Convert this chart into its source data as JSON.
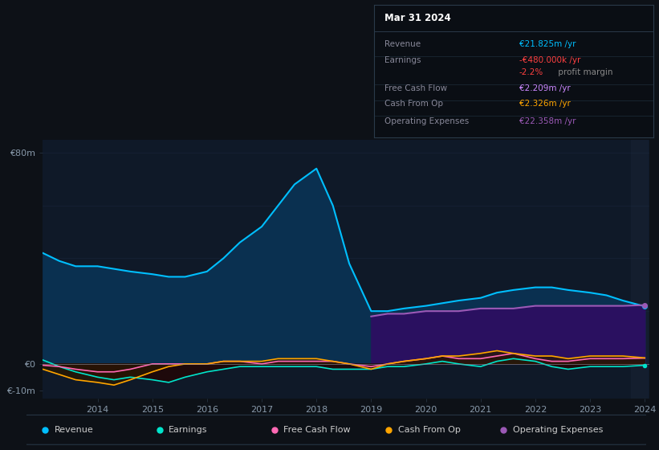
{
  "background_color": "#0d1117",
  "plot_bg_color": "#0f1928",
  "grid_color": "#1e2d45",
  "years": [
    2013.0,
    2013.3,
    2013.6,
    2014.0,
    2014.3,
    2014.6,
    2015.0,
    2015.3,
    2015.6,
    2016.0,
    2016.3,
    2016.6,
    2017.0,
    2017.3,
    2017.6,
    2018.0,
    2018.3,
    2018.6,
    2019.0,
    2019.3,
    2019.6,
    2020.0,
    2020.3,
    2020.6,
    2021.0,
    2021.3,
    2021.6,
    2022.0,
    2022.3,
    2022.6,
    2023.0,
    2023.3,
    2023.6,
    2024.0
  ],
  "revenue": [
    42,
    39,
    37,
    37,
    36,
    35,
    34,
    33,
    33,
    35,
    40,
    46,
    52,
    60,
    68,
    74,
    60,
    38,
    20,
    20,
    21,
    22,
    23,
    24,
    25,
    27,
    28,
    29,
    29,
    28,
    27,
    26,
    24,
    21.8
  ],
  "earnings": [
    1.5,
    -1,
    -3,
    -5,
    -6,
    -5,
    -6,
    -7,
    -5,
    -3,
    -2,
    -1,
    -1,
    -1,
    -1,
    -1,
    -2,
    -2,
    -2,
    -1,
    -1,
    0,
    1,
    0,
    -1,
    1,
    2,
    1,
    -1,
    -2,
    -1,
    -1,
    -1,
    -0.5
  ],
  "free_cash_flow": [
    -0.5,
    -1,
    -2,
    -3,
    -3,
    -2,
    0,
    0,
    0,
    0,
    1,
    1,
    0,
    1,
    1,
    1,
    1,
    0,
    -1,
    0,
    1,
    2,
    3,
    2,
    2,
    3,
    4,
    2,
    1,
    1,
    2,
    2,
    2,
    2.2
  ],
  "cash_from_op": [
    -2,
    -4,
    -6,
    -7,
    -8,
    -6,
    -3,
    -1,
    0,
    0,
    1,
    1,
    1,
    2,
    2,
    2,
    1,
    0,
    -2,
    0,
    1,
    2,
    3,
    3,
    4,
    5,
    4,
    3,
    3,
    2,
    3,
    3,
    3,
    2.3
  ],
  "op_expenses": [
    0,
    0,
    0,
    0,
    0,
    0,
    0,
    0,
    0,
    0,
    0,
    0,
    0,
    0,
    0,
    0,
    0,
    0,
    18,
    19,
    19,
    20,
    20,
    20,
    21,
    21,
    21,
    22,
    22,
    22,
    22,
    22,
    22,
    22.3
  ],
  "revenue_color": "#00bfff",
  "revenue_fill_color": "#0a3050",
  "earnings_color": "#00e5cc",
  "earnings_fill_neg_color": "#1a0a0a",
  "earnings_fill_pos_color": "#004040",
  "free_cash_flow_color": "#ff69b4",
  "free_cash_flow_fill_color": "#3a1020",
  "cash_from_op_color": "#ffa500",
  "cash_from_op_fill_color": "#2a1800",
  "op_expenses_color": "#9b59b6",
  "op_expenses_fill_color": "#2a1060",
  "highlight_color": "#151f30",
  "ylim": [
    -13,
    85
  ],
  "xtick_years": [
    2014,
    2015,
    2016,
    2017,
    2018,
    2019,
    2020,
    2021,
    2022,
    2023,
    2024
  ],
  "info_box": {
    "title": "Mar 31 2024",
    "rows": [
      {
        "label": "Revenue",
        "value": "€21.825m /yr",
        "value_color": "#00bfff"
      },
      {
        "label": "Earnings",
        "value": "-€480.000k /yr",
        "value_color": "#ff4040"
      },
      {
        "label": "",
        "value2a": "-2.2%",
        "value2b": " profit margin",
        "color2a": "#ff4040",
        "color2b": "#888888"
      },
      {
        "label": "Free Cash Flow",
        "value": "€2.209m /yr",
        "value_color": "#cc88ff"
      },
      {
        "label": "Cash From Op",
        "value": "€2.326m /yr",
        "value_color": "#ffa500"
      },
      {
        "label": "Operating Expenses",
        "value": "€22.358m /yr",
        "value_color": "#9b59b6"
      }
    ]
  },
  "legend_items": [
    {
      "label": "Revenue",
      "color": "#00bfff"
    },
    {
      "label": "Earnings",
      "color": "#00e5cc"
    },
    {
      "label": "Free Cash Flow",
      "color": "#ff69b4"
    },
    {
      "label": "Cash From Op",
      "color": "#ffa500"
    },
    {
      "label": "Operating Expenses",
      "color": "#9b59b6"
    }
  ]
}
